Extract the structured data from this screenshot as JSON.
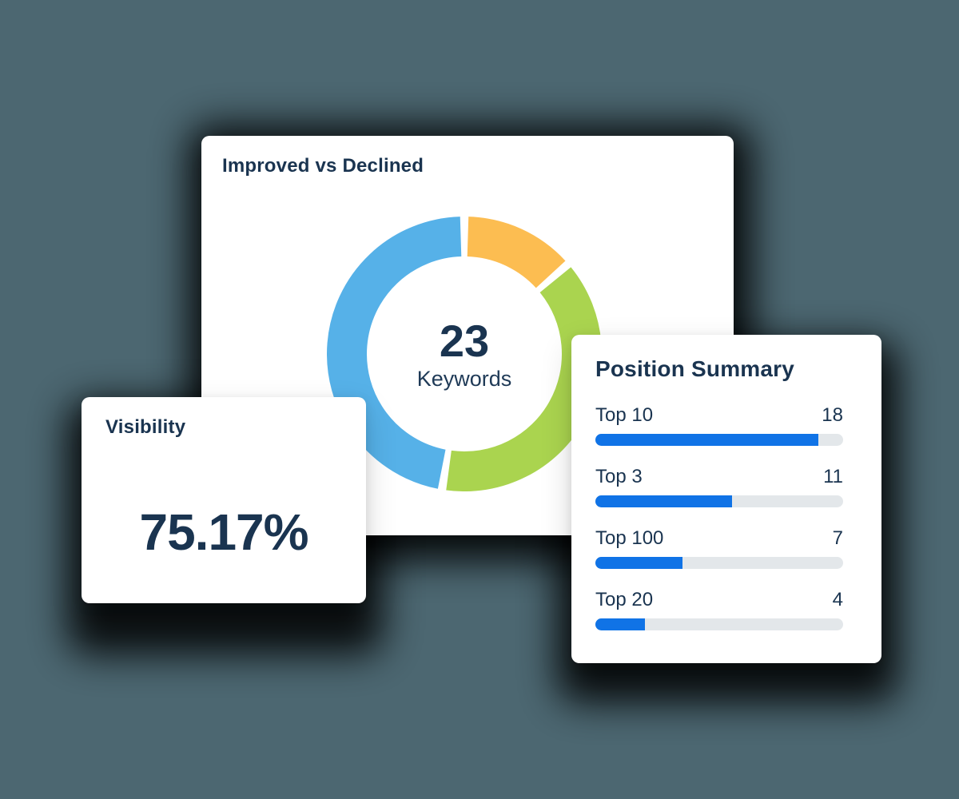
{
  "colors": {
    "background": "#4c6771",
    "card": "#ffffff",
    "navy_text": "#1a3450",
    "bar_fill": "#1073e6",
    "bar_track": "#e3e7ea",
    "donut_blue": "#56b1e8",
    "donut_orange": "#fcbd51",
    "donut_green": "#aad44f"
  },
  "improved_card": {
    "title": "Improved vs Declined"
  },
  "visibility_card": {
    "title": "Visibility",
    "value": "75.17%"
  },
  "position_card": {
    "title": "Position Summary"
  },
  "chart_data": [
    {
      "type": "pie",
      "variant": "donut",
      "title": "Improved vs Declined",
      "center_value": "23",
      "center_label": "Keywords",
      "total": 23,
      "start_angle_deg": 0,
      "clockwise": true,
      "segments": [
        {
          "name": "orange-segment",
          "value": 3,
          "color": "#fcbd51"
        },
        {
          "name": "green-segment",
          "value": 9,
          "color": "#aad44f"
        },
        {
          "name": "blue-segment",
          "value": 11,
          "color": "#56b1e8"
        }
      ]
    },
    {
      "type": "bar",
      "title": "Position Summary",
      "orientation": "horizontal",
      "max": 20,
      "rows": [
        {
          "label": "Top 10",
          "value": 18,
          "percent": 90
        },
        {
          "label": "Top 3",
          "value": 11,
          "percent": 55
        },
        {
          "label": "Top 100",
          "value": 7,
          "percent": 35
        },
        {
          "label": "Top 20",
          "value": 4,
          "percent": 20
        }
      ]
    }
  ]
}
